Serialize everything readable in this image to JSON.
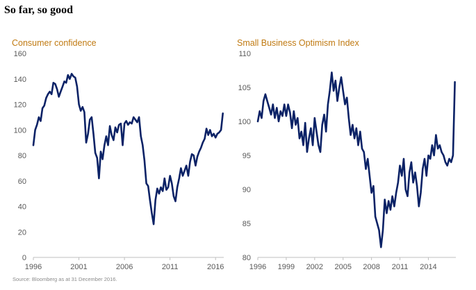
{
  "page": {
    "title": "So far, so good",
    "source": "Source: Bloomberg as at 31 December 2016."
  },
  "colors": {
    "line": "#0b2266",
    "title_accent": "#c07a12",
    "axis": "#bfbfbf",
    "tick_text": "#595959"
  },
  "chart_data": [
    {
      "type": "line",
      "title": "Consumer confidence",
      "xlabel": "",
      "ylabel": "",
      "xlim": [
        1996,
        2016.9
      ],
      "ylim": [
        0,
        160
      ],
      "xticks": [
        1996,
        2001,
        2006,
        2011,
        2016
      ],
      "yticks": [
        0,
        20,
        40,
        60,
        80,
        100,
        120,
        140,
        160
      ],
      "grid": false,
      "series": [
        {
          "values": [
            [
              1996.0,
              88
            ],
            [
              1996.2,
              100
            ],
            [
              1996.4,
              104
            ],
            [
              1996.6,
              110
            ],
            [
              1996.8,
              107
            ],
            [
              1997.0,
              117
            ],
            [
              1997.2,
              119
            ],
            [
              1997.4,
              125
            ],
            [
              1997.6,
              128
            ],
            [
              1997.8,
              130
            ],
            [
              1998.0,
              128
            ],
            [
              1998.2,
              137
            ],
            [
              1998.4,
              136
            ],
            [
              1998.6,
              132
            ],
            [
              1998.8,
              126
            ],
            [
              1999.0,
              130
            ],
            [
              1999.2,
              134
            ],
            [
              1999.4,
              138
            ],
            [
              1999.6,
              137
            ],
            [
              1999.8,
              143
            ],
            [
              2000.0,
              140
            ],
            [
              2000.2,
              144
            ],
            [
              2000.4,
              142
            ],
            [
              2000.6,
              141
            ],
            [
              2000.8,
              134
            ],
            [
              2001.0,
              120
            ],
            [
              2001.2,
              115
            ],
            [
              2001.4,
              118
            ],
            [
              2001.6,
              114
            ],
            [
              2001.8,
              90
            ],
            [
              2002.0,
              97
            ],
            [
              2002.2,
              108
            ],
            [
              2002.4,
              110
            ],
            [
              2002.6,
              97
            ],
            [
              2002.8,
              82
            ],
            [
              2003.0,
              78
            ],
            [
              2003.2,
              62
            ],
            [
              2003.4,
              83
            ],
            [
              2003.6,
              77
            ],
            [
              2003.8,
              88
            ],
            [
              2004.0,
              95
            ],
            [
              2004.2,
              88
            ],
            [
              2004.4,
              103
            ],
            [
              2004.6,
              96
            ],
            [
              2004.8,
              92
            ],
            [
              2005.0,
              102
            ],
            [
              2005.2,
              98
            ],
            [
              2005.4,
              104
            ],
            [
              2005.6,
              105
            ],
            [
              2005.8,
              88
            ],
            [
              2006.0,
              105
            ],
            [
              2006.2,
              107
            ],
            [
              2006.4,
              104
            ],
            [
              2006.6,
              106
            ],
            [
              2006.8,
              105
            ],
            [
              2007.0,
              110
            ],
            [
              2007.2,
              108
            ],
            [
              2007.4,
              106
            ],
            [
              2007.6,
              110
            ],
            [
              2007.8,
              95
            ],
            [
              2008.0,
              88
            ],
            [
              2008.2,
              76
            ],
            [
              2008.4,
              58
            ],
            [
              2008.6,
              56
            ],
            [
              2008.8,
              45
            ],
            [
              2009.0,
              35
            ],
            [
              2009.2,
              26
            ],
            [
              2009.4,
              45
            ],
            [
              2009.6,
              54
            ],
            [
              2009.8,
              50
            ],
            [
              2010.0,
              55
            ],
            [
              2010.2,
              52
            ],
            [
              2010.4,
              62
            ],
            [
              2010.6,
              53
            ],
            [
              2010.8,
              55
            ],
            [
              2011.0,
              64
            ],
            [
              2011.2,
              58
            ],
            [
              2011.4,
              48
            ],
            [
              2011.6,
              44
            ],
            [
              2011.8,
              55
            ],
            [
              2012.0,
              62
            ],
            [
              2012.2,
              70
            ],
            [
              2012.4,
              64
            ],
            [
              2012.6,
              68
            ],
            [
              2012.8,
              72
            ],
            [
              2013.0,
              64
            ],
            [
              2013.2,
              75
            ],
            [
              2013.4,
              81
            ],
            [
              2013.6,
              80
            ],
            [
              2013.8,
              72
            ],
            [
              2014.0,
              79
            ],
            [
              2014.2,
              83
            ],
            [
              2014.4,
              86
            ],
            [
              2014.6,
              90
            ],
            [
              2014.8,
              93
            ],
            [
              2015.0,
              101
            ],
            [
              2015.2,
              96
            ],
            [
              2015.4,
              100
            ],
            [
              2015.6,
              95
            ],
            [
              2015.8,
              97
            ],
            [
              2016.0,
              94
            ],
            [
              2016.2,
              97
            ],
            [
              2016.4,
              98
            ],
            [
              2016.6,
              100
            ],
            [
              2016.8,
              113
            ]
          ]
        }
      ]
    },
    {
      "type": "line",
      "title": "Small Business Optimism Index",
      "xlabel": "",
      "ylabel": "",
      "xlim": [
        1996,
        2016.9
      ],
      "ylim": [
        80,
        110
      ],
      "xticks": [
        1996,
        1999,
        2002,
        2005,
        2008,
        2011,
        2014
      ],
      "yticks": [
        80,
        85,
        90,
        95,
        100,
        105,
        110
      ],
      "grid": false,
      "series": [
        {
          "values": [
            [
              1996.0,
              100
            ],
            [
              1996.2,
              101.5
            ],
            [
              1996.4,
              100.5
            ],
            [
              1996.6,
              103
            ],
            [
              1996.8,
              104
            ],
            [
              1997.0,
              103
            ],
            [
              1997.2,
              102
            ],
            [
              1997.4,
              101
            ],
            [
              1997.6,
              102.5
            ],
            [
              1997.8,
              100.5
            ],
            [
              1998.0,
              102
            ],
            [
              1998.2,
              100
            ],
            [
              1998.4,
              101.5
            ],
            [
              1998.6,
              100.8
            ],
            [
              1998.8,
              102.5
            ],
            [
              1999.0,
              100.8
            ],
            [
              1999.2,
              102.5
            ],
            [
              1999.4,
              101.3
            ],
            [
              1999.6,
              99
            ],
            [
              1999.8,
              101.5
            ],
            [
              2000.0,
              99.5
            ],
            [
              2000.2,
              100.5
            ],
            [
              2000.4,
              97.5
            ],
            [
              2000.6,
              98.5
            ],
            [
              2000.8,
              96.5
            ],
            [
              2001.0,
              99.8
            ],
            [
              2001.2,
              95.5
            ],
            [
              2001.4,
              97.5
            ],
            [
              2001.6,
              99
            ],
            [
              2001.8,
              96.5
            ],
            [
              2002.0,
              100.5
            ],
            [
              2002.2,
              98.5
            ],
            [
              2002.4,
              96.5
            ],
            [
              2002.6,
              95.5
            ],
            [
              2002.8,
              99.5
            ],
            [
              2003.0,
              101
            ],
            [
              2003.2,
              98.5
            ],
            [
              2003.4,
              102.5
            ],
            [
              2003.6,
              104.5
            ],
            [
              2003.8,
              107.2
            ],
            [
              2004.0,
              104.5
            ],
            [
              2004.2,
              106
            ],
            [
              2004.4,
              103
            ],
            [
              2004.6,
              105
            ],
            [
              2004.8,
              106.5
            ],
            [
              2005.0,
              104.5
            ],
            [
              2005.2,
              102.5
            ],
            [
              2005.4,
              103.5
            ],
            [
              2005.6,
              100.5
            ],
            [
              2005.8,
              98
            ],
            [
              2006.0,
              99.5
            ],
            [
              2006.2,
              97.5
            ],
            [
              2006.4,
              99
            ],
            [
              2006.6,
              96.5
            ],
            [
              2006.8,
              98.5
            ],
            [
              2007.0,
              96
            ],
            [
              2007.2,
              95.5
            ],
            [
              2007.4,
              93
            ],
            [
              2007.6,
              94.5
            ],
            [
              2007.8,
              92
            ],
            [
              2008.0,
              89.5
            ],
            [
              2008.2,
              90.5
            ],
            [
              2008.4,
              86
            ],
            [
              2008.6,
              85
            ],
            [
              2008.8,
              84
            ],
            [
              2009.0,
              81.5
            ],
            [
              2009.2,
              84
            ],
            [
              2009.4,
              88.5
            ],
            [
              2009.6,
              86.5
            ],
            [
              2009.8,
              88.3
            ],
            [
              2010.0,
              87
            ],
            [
              2010.2,
              89
            ],
            [
              2010.4,
              87.5
            ],
            [
              2010.6,
              89.5
            ],
            [
              2010.8,
              91
            ],
            [
              2011.0,
              93.5
            ],
            [
              2011.2,
              92
            ],
            [
              2011.4,
              94.5
            ],
            [
              2011.6,
              90
            ],
            [
              2011.8,
              89
            ],
            [
              2012.0,
              92.5
            ],
            [
              2012.2,
              94
            ],
            [
              2012.4,
              91
            ],
            [
              2012.6,
              92.5
            ],
            [
              2012.8,
              90.5
            ],
            [
              2013.0,
              87.5
            ],
            [
              2013.2,
              89.5
            ],
            [
              2013.4,
              93
            ],
            [
              2013.6,
              94.5
            ],
            [
              2013.8,
              92
            ],
            [
              2014.0,
              95
            ],
            [
              2014.2,
              94.5
            ],
            [
              2014.4,
              96.5
            ],
            [
              2014.6,
              95
            ],
            [
              2014.8,
              98
            ],
            [
              2015.0,
              96
            ],
            [
              2015.2,
              96.5
            ],
            [
              2015.4,
              95.5
            ],
            [
              2015.6,
              95
            ],
            [
              2015.8,
              94
            ],
            [
              2016.0,
              93.5
            ],
            [
              2016.2,
              94.5
            ],
            [
              2016.4,
              94
            ],
            [
              2016.6,
              95
            ],
            [
              2016.8,
              105.8
            ]
          ]
        }
      ]
    }
  ]
}
